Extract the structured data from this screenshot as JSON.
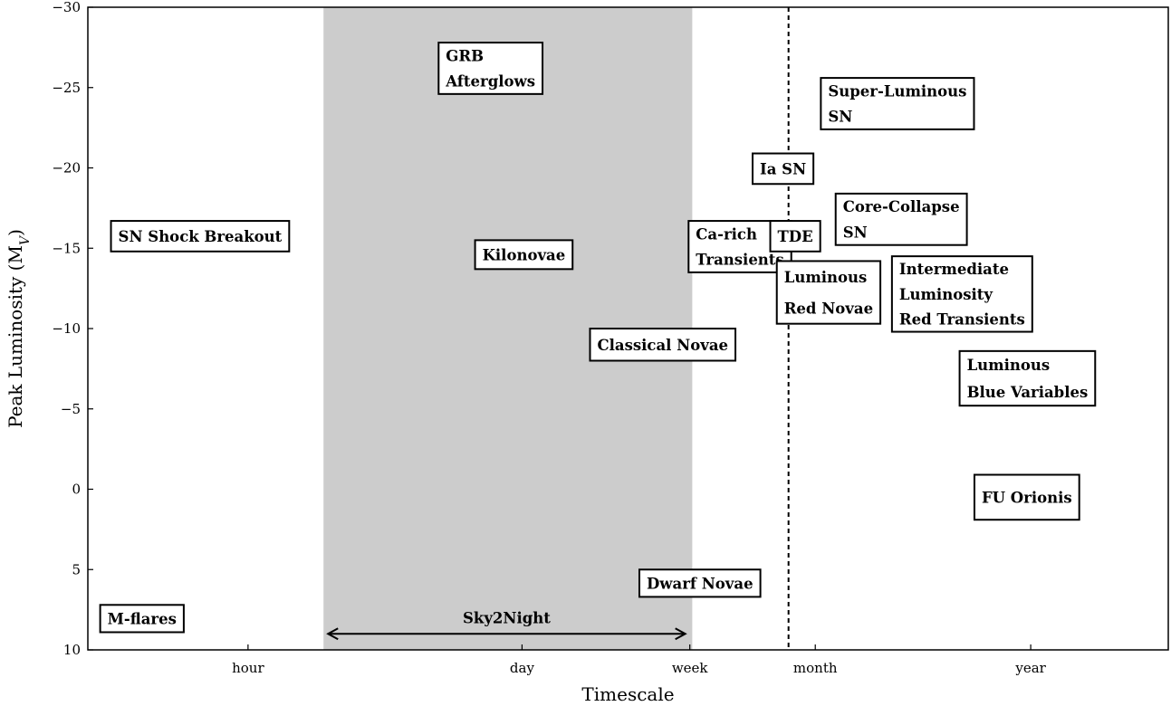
{
  "chart_data": {
    "type": "scatter",
    "title": "",
    "xlabel": "Timescale",
    "ylabel": "Peak Luminosity (M",
    "ylabel_sub": "V",
    "ylabel_close": ")",
    "x_scale": "log",
    "x_unit": "days",
    "xlim": [
      0.0065,
      1800
    ],
    "ylim": [
      10,
      -30
    ],
    "y_ticks": [
      -30,
      -25,
      -20,
      -15,
      -10,
      -5,
      0,
      5,
      10
    ],
    "y_tick_labels": [
      "−30",
      "−25",
      "−20",
      "−15",
      "−10",
      "−5",
      "0",
      "5",
      "10"
    ],
    "x_ticks": [
      {
        "value": 0.041667,
        "label": "hour"
      },
      {
        "value": 1,
        "label": "day"
      },
      {
        "value": 7,
        "label": "week"
      },
      {
        "value": 30,
        "label": "month"
      },
      {
        "value": 365,
        "label": "year"
      }
    ],
    "shaded_region": {
      "x": [
        0.1,
        7.2
      ],
      "color": "#cccccc"
    },
    "span_arrow": {
      "x": [
        0.1,
        7.0
      ],
      "y": 9.0,
      "label": "Sky2Night"
    },
    "vline": {
      "x": 22,
      "style": "dashed"
    },
    "grid": false,
    "legend": "none",
    "transients": [
      {
        "lines": [
          "GRB",
          "Afterglows"
        ],
        "x": 0.38,
        "y_top": -27.8,
        "y_bottom": -24.6
      },
      {
        "lines": [
          "Super-Luminous",
          "SN"
        ],
        "x": 32,
        "y_top": -25.6,
        "y_bottom": -22.4
      },
      {
        "lines": [
          "Ia SN"
        ],
        "x": 14.5,
        "y_top": -20.9,
        "y_bottom": -19.0
      },
      {
        "lines": [
          "Core-Collapse",
          "SN"
        ],
        "x": 38,
        "y_top": -18.4,
        "y_bottom": -15.2
      },
      {
        "lines": [
          "SN Shock Breakout"
        ],
        "x": 0.0085,
        "y_top": -16.7,
        "y_bottom": -14.8
      },
      {
        "lines": [
          "Kilonovae"
        ],
        "x": 0.58,
        "y_top": -15.5,
        "y_bottom": -13.7
      },
      {
        "lines": [
          "Ca-rich",
          "Transients"
        ],
        "x": 6.9,
        "y_top": -16.7,
        "y_bottom": -13.5
      },
      {
        "lines": [
          "TDE"
        ],
        "x": 17.8,
        "y_top": -16.7,
        "y_bottom": -14.8
      },
      {
        "lines": [
          "Luminous",
          "Red Novae"
        ],
        "x": 19.2,
        "y_top": -14.2,
        "y_bottom": -10.3
      },
      {
        "lines": [
          "Intermediate",
          "Luminosity",
          "Red Transients"
        ],
        "x": 73,
        "y_top": -14.5,
        "y_bottom": -9.8
      },
      {
        "lines": [
          "Classical Novae"
        ],
        "x": 2.2,
        "y_top": -10.0,
        "y_bottom": -8.0
      },
      {
        "lines": [
          "Luminous",
          "Blue Variables"
        ],
        "x": 160,
        "y_top": -8.6,
        "y_bottom": -5.2
      },
      {
        "lines": [
          "FU Orionis"
        ],
        "x": 190,
        "y_top": -0.9,
        "y_bottom": 1.9
      },
      {
        "lines": [
          "Dwarf Novae"
        ],
        "x": 3.9,
        "y_top": 5.0,
        "y_bottom": 6.7
      },
      {
        "lines": [
          "M-flares"
        ],
        "x": 0.0075,
        "y_top": 7.2,
        "y_bottom": 8.9
      }
    ]
  }
}
